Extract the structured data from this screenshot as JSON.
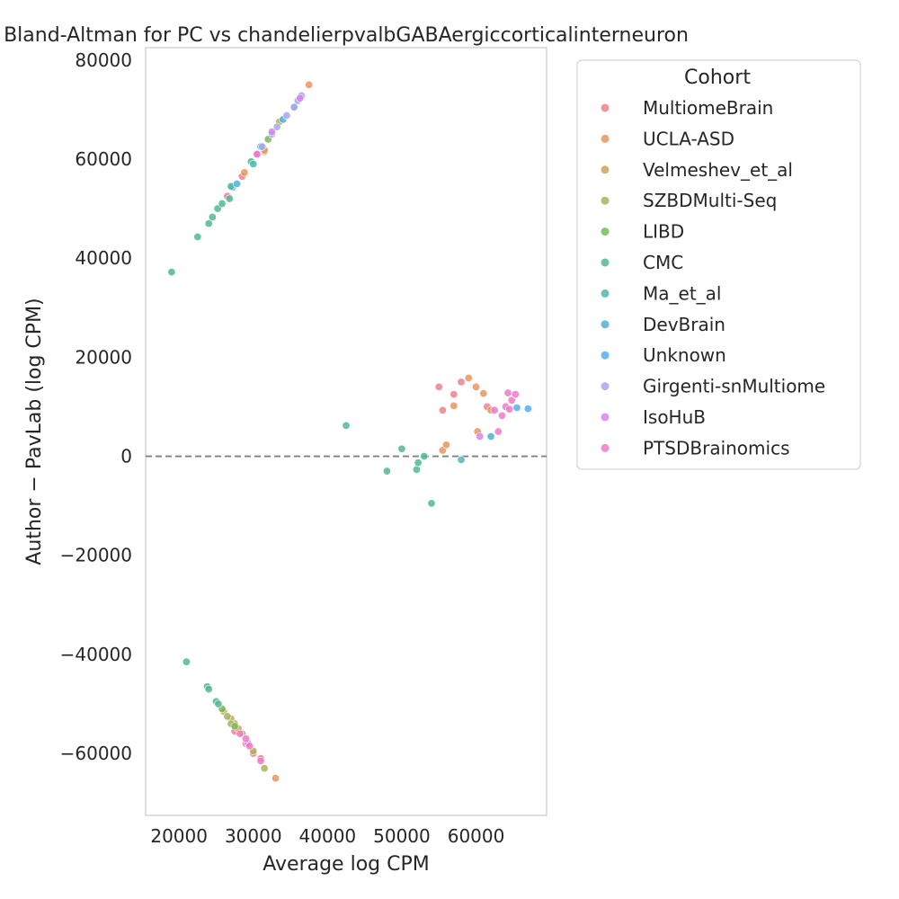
{
  "chart_data": {
    "type": "scatter",
    "title": "Bland-Altman for PC vs chandelierpvalbGABAergiccorticalinterneuron",
    "xlabel": "Average log CPM",
    "ylabel": "Author − PavLab (log CPM)",
    "xlim": [
      15500,
      69500
    ],
    "ylim": [
      -72500,
      82500
    ],
    "x_ticks": [
      20000,
      30000,
      40000,
      50000,
      60000
    ],
    "x_tick_labels": [
      "20000",
      "30000",
      "40000",
      "50000",
      "60000"
    ],
    "y_ticks": [
      -60000,
      -40000,
      -20000,
      0,
      20000,
      40000,
      60000,
      80000
    ],
    "y_tick_labels": [
      "−60000",
      "−40000",
      "−20000",
      "0",
      "20000",
      "40000",
      "60000",
      "80000"
    ],
    "reference_line": {
      "y": 0,
      "style": "dashed",
      "color": "#808080"
    },
    "grid": false,
    "legend": {
      "title": "Cohort",
      "placement": "outside-right-top"
    },
    "series": [
      {
        "name": "MultiomeBrain",
        "color": "#f0808f",
        "points": [
          [
            26500,
            52500
          ],
          [
            28500,
            56500
          ],
          [
            55000,
            14000
          ],
          [
            55500,
            9300
          ],
          [
            57000,
            12500
          ],
          [
            58000,
            15000
          ],
          [
            61500,
            10000
          ],
          [
            30000,
            -60000
          ],
          [
            29000,
            -58000
          ],
          [
            31000,
            -61000
          ],
          [
            27500,
            -55500
          ]
        ]
      },
      {
        "name": "UCLA-ASD",
        "color": "#e8955e",
        "points": [
          [
            37500,
            75000
          ],
          [
            55500,
            1200
          ],
          [
            56000,
            2300
          ],
          [
            57000,
            10200
          ],
          [
            59000,
            15800
          ],
          [
            60000,
            14000
          ],
          [
            61000,
            12700
          ],
          [
            60200,
            5000
          ],
          [
            62000,
            9300
          ],
          [
            33000,
            -65000
          ],
          [
            28800,
            57300
          ],
          [
            31500,
            61500
          ]
        ]
      },
      {
        "name": "Velmeshev_et_al",
        "color": "#c8a45a",
        "points": [
          [
            27000,
            -53000
          ],
          [
            27500,
            -54000
          ],
          [
            26000,
            -51500
          ],
          [
            28000,
            -55000
          ],
          [
            31500,
            61800
          ]
        ]
      },
      {
        "name": "SZBDMulti-Seq",
        "color": "#a8b45a",
        "points": [
          [
            26500,
            -52500
          ],
          [
            28500,
            -56000
          ],
          [
            30000,
            -59500
          ],
          [
            31500,
            -63000
          ],
          [
            27000,
            -54000
          ],
          [
            33500,
            67500
          ]
        ]
      },
      {
        "name": "LIBD",
        "color": "#78b95a",
        "points": [
          [
            27500,
            -54500
          ],
          [
            25800,
            -51000
          ],
          [
            32000,
            64000
          ]
        ]
      },
      {
        "name": "CMC",
        "color": "#52b994",
        "points": [
          [
            19000,
            37200
          ],
          [
            21000,
            -41500
          ],
          [
            22500,
            44300
          ],
          [
            24000,
            47000
          ],
          [
            24500,
            48300
          ],
          [
            25200,
            50000
          ],
          [
            25800,
            51000
          ],
          [
            26800,
            52000
          ],
          [
            27200,
            54300
          ],
          [
            42500,
            6200
          ],
          [
            48000,
            -3000
          ],
          [
            50000,
            1500
          ],
          [
            52000,
            -2700
          ],
          [
            52200,
            -1300
          ],
          [
            53000,
            0
          ],
          [
            54000,
            -9500
          ],
          [
            23800,
            -46500
          ],
          [
            24000,
            -47000
          ],
          [
            25000,
            -49500
          ],
          [
            25300,
            -50000
          ],
          [
            29700,
            59500
          ],
          [
            31000,
            62500
          ]
        ]
      },
      {
        "name": "Ma_et_al",
        "color": "#4db8b0",
        "points": [
          [
            30000,
            59000
          ],
          [
            35500,
            70500
          ],
          [
            58000,
            -700
          ],
          [
            27000,
            54500
          ]
        ]
      },
      {
        "name": "DevBrain",
        "color": "#4fb1d0",
        "points": [
          [
            27800,
            55000
          ],
          [
            62000,
            4000
          ],
          [
            34000,
            68000
          ]
        ]
      },
      {
        "name": "Unknown",
        "color": "#55aef0",
        "points": [
          [
            65500,
            9800
          ],
          [
            67000,
            9600
          ]
        ]
      },
      {
        "name": "Girgenti-snMultiome",
        "color": "#a5a8f0",
        "points": [
          [
            32500,
            65000
          ],
          [
            33200,
            66500
          ],
          [
            34500,
            68800
          ],
          [
            35500,
            70500
          ],
          [
            36000,
            71800
          ],
          [
            36500,
            72800
          ],
          [
            31200,
            62500
          ]
        ]
      },
      {
        "name": "IsoHuB",
        "color": "#d784f0",
        "points": [
          [
            32500,
            65500
          ],
          [
            30500,
            61000
          ],
          [
            36300,
            72300
          ],
          [
            60500,
            4000
          ],
          [
            29300,
            -58000
          ]
        ]
      },
      {
        "name": "PTSDBrainomics",
        "color": "#f07ac8",
        "points": [
          [
            30500,
            61000
          ],
          [
            29500,
            -58500
          ],
          [
            29000,
            -57000
          ],
          [
            31000,
            -61500
          ],
          [
            28200,
            -56000
          ],
          [
            62500,
            9300
          ],
          [
            63000,
            5000
          ],
          [
            63500,
            8200
          ],
          [
            64000,
            10000
          ],
          [
            64500,
            9500
          ],
          [
            64300,
            12800
          ],
          [
            64800,
            11300
          ],
          [
            65300,
            12500
          ]
        ]
      }
    ]
  }
}
